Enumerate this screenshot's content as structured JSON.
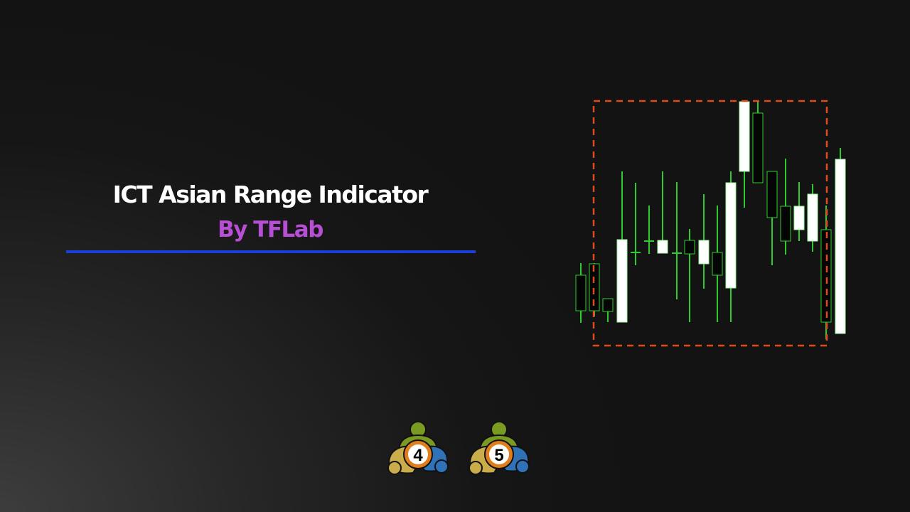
{
  "title": "ICT Asian Range Indicator",
  "subtitle": "By TFLab",
  "colors": {
    "title": "#ffffff",
    "subtitle": "#b64fd4",
    "underline": "#1b3fd8",
    "range_box": "#e2491c",
    "candle_wick": "#2ecc2e",
    "candle_bull": "#ffffff",
    "candle_bear": "#050505"
  },
  "logos": [
    {
      "name": "metatrader-4-logo",
      "label": "4"
    },
    {
      "name": "metatrader-5-logo",
      "label": "5"
    }
  ]
}
